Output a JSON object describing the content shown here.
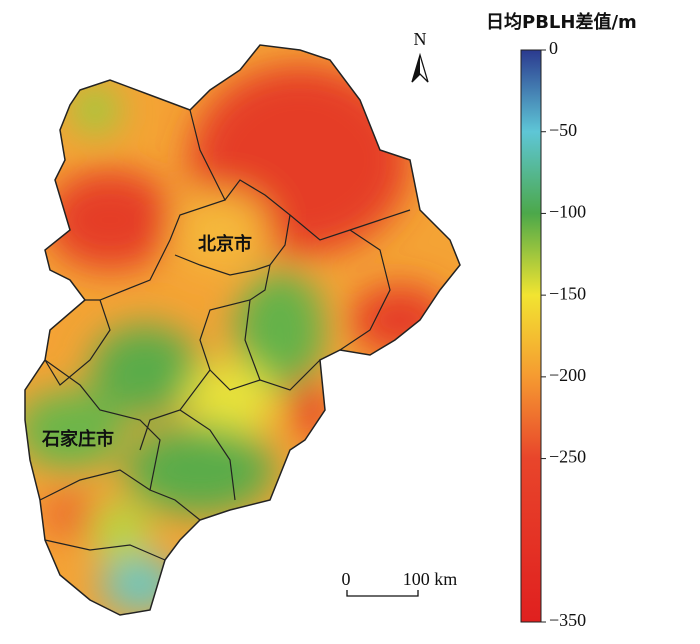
{
  "map": {
    "labels": [
      "北京市",
      "石家庄市"
    ],
    "north_arrow": "N",
    "scale_bar": [
      "0",
      "100 km"
    ]
  },
  "colorbar": {
    "title": "日均PBLH差值/m",
    "range": [
      -350,
      0
    ],
    "ticks": [
      0,
      {
        "value": -50,
        "label": "−50"
      },
      {
        "value": -100,
        "label": "−100"
      },
      {
        "value": -150,
        "label": "−150"
      },
      {
        "value": -200,
        "label": "−200"
      },
      {
        "value": -250,
        "label": "−250"
      },
      {
        "value": -350,
        "label": "−350"
      }
    ],
    "color_stops": [
      {
        "value": 0,
        "color": "#2b3a8f"
      },
      {
        "value": -50,
        "color": "#5ec6d6"
      },
      {
        "value": -100,
        "color": "#4ca84a"
      },
      {
        "value": -150,
        "color": "#f2e431"
      },
      {
        "value": -200,
        "color": "#f59a31"
      },
      {
        "value": -250,
        "color": "#e8452b"
      },
      {
        "value": -350,
        "color": "#e0201f"
      }
    ]
  }
}
